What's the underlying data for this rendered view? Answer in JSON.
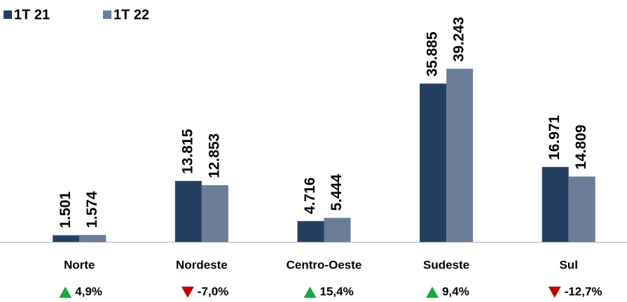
{
  "chart_data": {
    "type": "bar",
    "categories": [
      "Norte",
      "Nordeste",
      "Centro-Oeste",
      "Sudeste",
      "Sul"
    ],
    "series": [
      {
        "name": "1T 21",
        "color": "#253f63",
        "values": [
          1501,
          13815,
          4716,
          35885,
          16971
        ],
        "value_labels": [
          "1.501",
          "13.815",
          "4.716",
          "35.885",
          "16.971"
        ]
      },
      {
        "name": "1T 22",
        "color": "#6b7d98",
        "values": [
          1574,
          12853,
          5444,
          39243,
          14809
        ],
        "value_labels": [
          "1.574",
          "12.853",
          "5.444",
          "39.243",
          "14.809"
        ]
      }
    ],
    "changes": [
      {
        "value": 4.9,
        "label": "4,9%"
      },
      {
        "value": -7.0,
        "label": "-7,0%"
      },
      {
        "value": 15.4,
        "label": "15,4%"
      },
      {
        "value": 9.4,
        "label": "9,4%"
      },
      {
        "value": -12.7,
        "label": "-12,7%"
      }
    ],
    "up_color": "#1aa64a",
    "down_color": "#c00000",
    "ylim": [
      0,
      45000
    ],
    "legend": "top-left"
  }
}
